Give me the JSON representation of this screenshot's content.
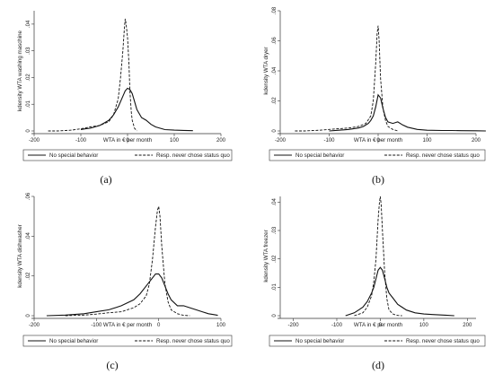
{
  "chart_data": [
    {
      "type": "line",
      "panel_label": "(a)",
      "xlabel": "WTA in € per month",
      "ylabel": "kdensity WTA washing maschine",
      "xlim": [
        -200,
        200
      ],
      "xticks": [
        -200,
        -100,
        0,
        100,
        200
      ],
      "xtick_labels": [
        "-200",
        "-100",
        "0",
        "100",
        "200"
      ],
      "ylim": [
        0,
        0.045
      ],
      "yticks": [
        0,
        0.01,
        0.02,
        0.03,
        0.04
      ],
      "ytick_labels": [
        "0",
        ".01",
        ".02",
        ".03",
        ".04"
      ],
      "legend": [
        "No special behavior",
        "Resp. never chose status quo"
      ],
      "series": [
        {
          "name": "No special behavior",
          "style": "solid",
          "x": [
            -100,
            -90,
            -80,
            -70,
            -60,
            -50,
            -40,
            -30,
            -20,
            -10,
            -5,
            0,
            5,
            10,
            15,
            20,
            30,
            40,
            50,
            60,
            70,
            80,
            100,
            120,
            140
          ],
          "y": [
            0.0005,
            0.0008,
            0.001,
            0.0015,
            0.002,
            0.003,
            0.004,
            0.006,
            0.009,
            0.013,
            0.015,
            0.016,
            0.0155,
            0.014,
            0.011,
            0.008,
            0.005,
            0.004,
            0.0025,
            0.0015,
            0.001,
            0.0005,
            0.0003,
            0.0002,
            0.0001
          ]
        },
        {
          "name": "Resp. never chose status quo",
          "style": "dashed",
          "x": [
            -170,
            -150,
            -120,
            -100,
            -80,
            -60,
            -40,
            -30,
            -20,
            -15,
            -10,
            -7,
            -5,
            -3,
            0,
            3,
            5,
            8,
            10,
            15,
            20
          ],
          "y": [
            0,
            0,
            0.0003,
            0.0008,
            0.0015,
            0.002,
            0.0035,
            0.006,
            0.012,
            0.02,
            0.03,
            0.038,
            0.042,
            0.04,
            0.035,
            0.025,
            0.015,
            0.007,
            0.004,
            0.001,
            0
          ]
        }
      ]
    },
    {
      "type": "line",
      "panel_label": "(b)",
      "xlabel": "WTA in € per month",
      "ylabel": "kdensity WTA dryer",
      "xlim": [
        -200,
        200
      ],
      "xticks": [
        -200,
        -100,
        0,
        100,
        200
      ],
      "xtick_labels": [
        "-200",
        "-100",
        "0",
        "100",
        "200"
      ],
      "ylim": [
        0,
        0.08
      ],
      "yticks": [
        0,
        0.02,
        0.04,
        0.06,
        0.08
      ],
      "ytick_labels": [
        "0",
        ".02",
        ".04",
        ".06",
        ".08"
      ],
      "legend": [
        "No special behavior",
        "Resp. never chose status quo"
      ],
      "series": [
        {
          "name": "No special behavior",
          "style": "solid",
          "x": [
            -100,
            -80,
            -60,
            -40,
            -30,
            -20,
            -15,
            -10,
            -5,
            0,
            5,
            10,
            15,
            20,
            30,
            40,
            50,
            60,
            80,
            100,
            130,
            150,
            170,
            200,
            220
          ],
          "y": [
            0,
            0.0005,
            0.001,
            0.002,
            0.003,
            0.005,
            0.007,
            0.01,
            0.016,
            0.024,
            0.022,
            0.015,
            0.009,
            0.006,
            0.005,
            0.006,
            0.004,
            0.0025,
            0.001,
            0.0005,
            0.0003,
            0.0003,
            0.0002,
            0.0001,
            0
          ]
        },
        {
          "name": "Resp. never chose status quo",
          "style": "dashed",
          "x": [
            -170,
            -150,
            -120,
            -100,
            -80,
            -60,
            -40,
            -25,
            -15,
            -10,
            -5,
            -2,
            0,
            2,
            5,
            10,
            15,
            20,
            30,
            40
          ],
          "y": [
            0,
            0,
            0.0005,
            0.001,
            0.0015,
            0.002,
            0.003,
            0.005,
            0.01,
            0.02,
            0.045,
            0.065,
            0.07,
            0.06,
            0.035,
            0.015,
            0.007,
            0.003,
            0.001,
            0
          ]
        }
      ]
    },
    {
      "type": "line",
      "panel_label": "(c)",
      "xlabel": "WTA in € per month",
      "ylabel": "kdensity WTA dishwasher",
      "xlim": [
        -200,
        100
      ],
      "xticks": [
        -200,
        -100,
        0,
        100
      ],
      "xtick_labels": [
        "-200",
        "-100",
        "0",
        "100"
      ],
      "ylim": [
        0,
        0.06
      ],
      "yticks": [
        0,
        0.02,
        0.04,
        0.06
      ],
      "ytick_labels": [
        "0",
        ".02",
        ".04",
        ".06"
      ],
      "legend": [
        "No special behavior",
        "Resp. never chose status quo"
      ],
      "series": [
        {
          "name": "No special behavior",
          "style": "solid",
          "x": [
            -180,
            -150,
            -120,
            -100,
            -80,
            -60,
            -40,
            -30,
            -20,
            -10,
            -5,
            0,
            5,
            10,
            15,
            20,
            30,
            40,
            50,
            60,
            70,
            80,
            90,
            95
          ],
          "y": [
            0,
            0.0003,
            0.001,
            0.002,
            0.003,
            0.005,
            0.008,
            0.011,
            0.015,
            0.019,
            0.021,
            0.021,
            0.019,
            0.015,
            0.011,
            0.008,
            0.005,
            0.005,
            0.004,
            0.003,
            0.002,
            0.001,
            0.0005,
            0.0002
          ]
        },
        {
          "name": "Resp. never chose status quo",
          "style": "dashed",
          "x": [
            -150,
            -120,
            -100,
            -80,
            -60,
            -40,
            -30,
            -20,
            -15,
            -10,
            -5,
            -2,
            0,
            2,
            5,
            10,
            15,
            20,
            30,
            40,
            50
          ],
          "y": [
            0,
            0.0003,
            0.0008,
            0.0015,
            0.002,
            0.004,
            0.006,
            0.01,
            0.016,
            0.028,
            0.045,
            0.053,
            0.055,
            0.05,
            0.035,
            0.016,
            0.007,
            0.003,
            0.001,
            0.0002,
            0
          ]
        }
      ]
    },
    {
      "type": "line",
      "panel_label": "(d)",
      "xlabel": "WTA in € per month",
      "ylabel": "kdensity WTA freezer",
      "xlim": [
        -230,
        220
      ],
      "xticks": [
        -200,
        -100,
        0,
        100,
        200
      ],
      "xtick_labels": [
        "-200",
        "-100",
        "0",
        "100",
        "200"
      ],
      "ylim": [
        0,
        0.042
      ],
      "yticks": [
        0,
        0.01,
        0.02,
        0.03,
        0.04
      ],
      "ytick_labels": [
        "0",
        ".01",
        ".02",
        ".03",
        ".04"
      ],
      "legend": [
        "No special behavior",
        "Resp. never chose status quo"
      ],
      "series": [
        {
          "name": "No special behavior",
          "style": "solid",
          "x": [
            -80,
            -60,
            -50,
            -40,
            -30,
            -20,
            -15,
            -10,
            -5,
            0,
            5,
            10,
            15,
            20,
            30,
            40,
            50,
            60,
            80,
            100,
            120,
            150,
            170
          ],
          "y": [
            0,
            0.001,
            0.002,
            0.003,
            0.005,
            0.008,
            0.01,
            0.013,
            0.016,
            0.017,
            0.016,
            0.013,
            0.01,
            0.008,
            0.006,
            0.004,
            0.003,
            0.002,
            0.001,
            0.0006,
            0.0004,
            0.0002,
            0
          ]
        },
        {
          "name": "Resp. never chose status quo",
          "style": "dashed",
          "x": [
            -60,
            -40,
            -30,
            -20,
            -15,
            -10,
            -5,
            -2,
            0,
            2,
            5,
            10,
            15,
            20,
            30,
            40,
            50
          ],
          "y": [
            0,
            0.001,
            0.003,
            0.007,
            0.012,
            0.02,
            0.034,
            0.04,
            0.042,
            0.039,
            0.03,
            0.015,
            0.006,
            0.002,
            0.0005,
            0.0001,
            0
          ]
        }
      ]
    }
  ]
}
